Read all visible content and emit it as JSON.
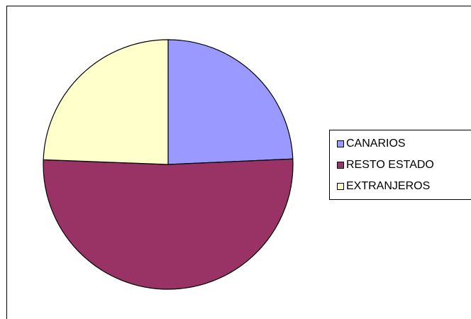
{
  "chart_data": {
    "type": "pie",
    "title": "",
    "categories": [
      "CANARIOS",
      "RESTO ESTADO",
      "EXTRANJEROS"
    ],
    "values": [
      24.3,
      51.3,
      24.4
    ],
    "colors": [
      "#9999ff",
      "#993366",
      "#ffffcc"
    ],
    "start_angle_deg": 0,
    "direction": "clockwise",
    "legend_position": "right"
  }
}
